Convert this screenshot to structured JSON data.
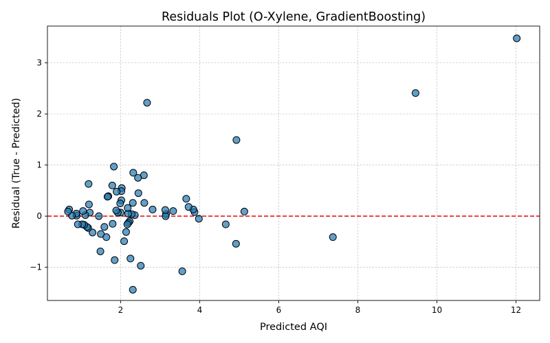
{
  "chart_data": {
    "type": "scatter",
    "title": "Residuals Plot (O-Xylene, GradientBoosting)",
    "xlabel": "Predicted AQI",
    "ylabel": "Residual (True - Predicted)",
    "xlim": [
      0.15,
      12.6
    ],
    "ylim": [
      -1.65,
      3.72
    ],
    "xticks": [
      2,
      4,
      6,
      8,
      10,
      12
    ],
    "yticks": [
      -1,
      0,
      1,
      2,
      3
    ],
    "xtick_labels": [
      "2",
      "4",
      "6",
      "8",
      "10",
      "12"
    ],
    "ytick_labels": [
      "−1",
      "0",
      "1",
      "2",
      "3"
    ],
    "grid": true,
    "reference_line": {
      "y": 0,
      "color": "#e41a1c",
      "style": "dashed"
    },
    "point_color": "#1f77b4",
    "points": [
      {
        "x": 12.02,
        "y": 3.48
      },
      {
        "x": 9.46,
        "y": 2.41
      },
      {
        "x": 7.37,
        "y": -0.41
      },
      {
        "x": 2.67,
        "y": 2.22
      },
      {
        "x": 4.93,
        "y": 1.49
      },
      {
        "x": 4.92,
        "y": -0.54
      },
      {
        "x": 5.13,
        "y": 0.09
      },
      {
        "x": 4.66,
        "y": -0.16
      },
      {
        "x": 3.98,
        "y": -0.05
      },
      {
        "x": 3.87,
        "y": 0.08
      },
      {
        "x": 3.84,
        "y": 0.13
      },
      {
        "x": 3.72,
        "y": 0.18
      },
      {
        "x": 3.66,
        "y": 0.34
      },
      {
        "x": 3.56,
        "y": -1.08
      },
      {
        "x": 3.33,
        "y": 0.1
      },
      {
        "x": 3.15,
        "y": 0.04
      },
      {
        "x": 3.14,
        "y": 0.0
      },
      {
        "x": 3.13,
        "y": 0.12
      },
      {
        "x": 2.81,
        "y": 0.13
      },
      {
        "x": 2.6,
        "y": 0.26
      },
      {
        "x": 2.59,
        "y": 0.8
      },
      {
        "x": 2.51,
        "y": -0.97
      },
      {
        "x": 2.45,
        "y": 0.45
      },
      {
        "x": 2.44,
        "y": 0.75
      },
      {
        "x": 2.36,
        "y": 0.02
      },
      {
        "x": 2.32,
        "y": 0.85
      },
      {
        "x": 2.31,
        "y": 0.26
      },
      {
        "x": 2.31,
        "y": -1.44
      },
      {
        "x": 2.28,
        "y": 0.04
      },
      {
        "x": 2.25,
        "y": -0.83
      },
      {
        "x": 2.23,
        "y": -0.1
      },
      {
        "x": 2.2,
        "y": -0.13
      },
      {
        "x": 2.19,
        "y": 0.05
      },
      {
        "x": 2.18,
        "y": 0.16
      },
      {
        "x": 2.17,
        "y": -0.16
      },
      {
        "x": 2.14,
        "y": -0.31
      },
      {
        "x": 2.09,
        "y": -0.49
      },
      {
        "x": 2.03,
        "y": 0.55
      },
      {
        "x": 2.02,
        "y": 0.49
      },
      {
        "x": 2.02,
        "y": 0.31
      },
      {
        "x": 2.0,
        "y": 0.07
      },
      {
        "x": 1.99,
        "y": 0.25
      },
      {
        "x": 1.93,
        "y": 0.07
      },
      {
        "x": 1.9,
        "y": 0.48
      },
      {
        "x": 1.89,
        "y": 0.11
      },
      {
        "x": 1.85,
        "y": -0.86
      },
      {
        "x": 1.83,
        "y": 0.97
      },
      {
        "x": 1.79,
        "y": 0.6
      },
      {
        "x": 1.8,
        "y": -0.15
      },
      {
        "x": 1.69,
        "y": 0.39
      },
      {
        "x": 1.67,
        "y": 0.38
      },
      {
        "x": 1.64,
        "y": -0.41
      },
      {
        "x": 1.59,
        "y": -0.21
      },
      {
        "x": 1.5,
        "y": -0.35
      },
      {
        "x": 1.49,
        "y": -0.69
      },
      {
        "x": 1.45,
        "y": 0.0
      },
      {
        "x": 1.29,
        "y": -0.32
      },
      {
        "x": 1.22,
        "y": 0.07
      },
      {
        "x": 1.2,
        "y": 0.23
      },
      {
        "x": 1.19,
        "y": 0.63
      },
      {
        "x": 1.18,
        "y": -0.23
      },
      {
        "x": 1.15,
        "y": -0.21
      },
      {
        "x": 1.11,
        "y": 0.02
      },
      {
        "x": 1.08,
        "y": -0.17
      },
      {
        "x": 1.05,
        "y": 0.1
      },
      {
        "x": 1.03,
        "y": -0.16
      },
      {
        "x": 0.92,
        "y": -0.16
      },
      {
        "x": 0.89,
        "y": 0.01
      },
      {
        "x": 0.88,
        "y": 0.05
      },
      {
        "x": 0.77,
        "y": 0.01
      },
      {
        "x": 0.7,
        "y": 0.13
      },
      {
        "x": 0.67,
        "y": 0.09
      }
    ]
  }
}
